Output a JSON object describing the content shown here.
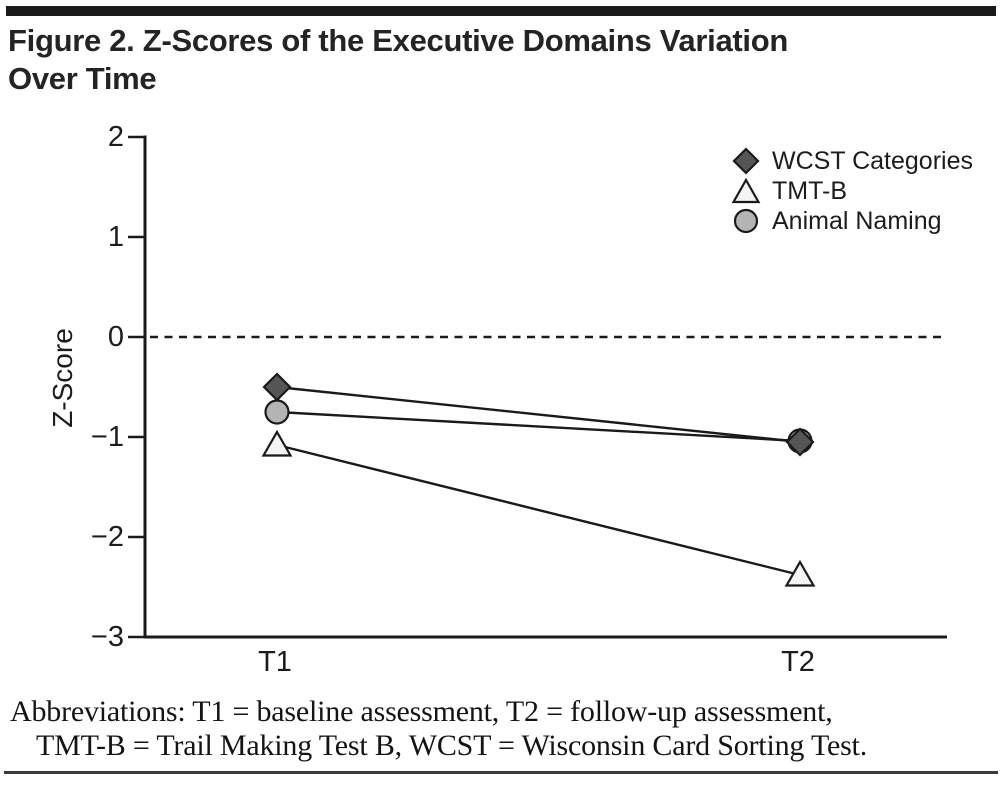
{
  "header": {
    "title_line1": "Figure 2. Z-Scores of the Executive Domains Variation",
    "title_line2": "Over Time"
  },
  "chart_data": {
    "type": "line",
    "title": "Figure 2. Z-Scores of the Executive Domains Variation Over Time",
    "xlabel": "",
    "ylabel": "Z-Score",
    "categories": [
      "T1",
      "T2"
    ],
    "ylim": [
      -3,
      2
    ],
    "grid": false,
    "legend_position": "top-right",
    "zero_reference_line": {
      "value": 0,
      "style": "dashed"
    },
    "line_color": "#1a1a1a",
    "yticks": [
      {
        "label": "2",
        "value": 2
      },
      {
        "label": "1",
        "value": 1
      },
      {
        "label": "0",
        "value": 0
      },
      {
        "label": "−1",
        "value": -1
      },
      {
        "label": "−2",
        "value": -2
      },
      {
        "label": "−3",
        "value": -3
      }
    ],
    "series": [
      {
        "name": "WCST Categories",
        "marker": "diamond",
        "fill": "#565656",
        "values": [
          -0.5,
          -1.05
        ]
      },
      {
        "name": "TMT-B",
        "marker": "triangle",
        "fill": "#f4f4f4",
        "values": [
          -1.08,
          -2.38
        ]
      },
      {
        "name": "Animal Naming",
        "marker": "circle",
        "fill": "#b4b4b4",
        "values": [
          -0.75,
          -1.04
        ]
      }
    ]
  },
  "footnote": {
    "line1": "Abbreviations: T1 = baseline assessment, T2 = follow-up assessment,",
    "line2": "TMT-B = Trail Making Test B, WCST = Wisconsin Card Sorting Test."
  }
}
